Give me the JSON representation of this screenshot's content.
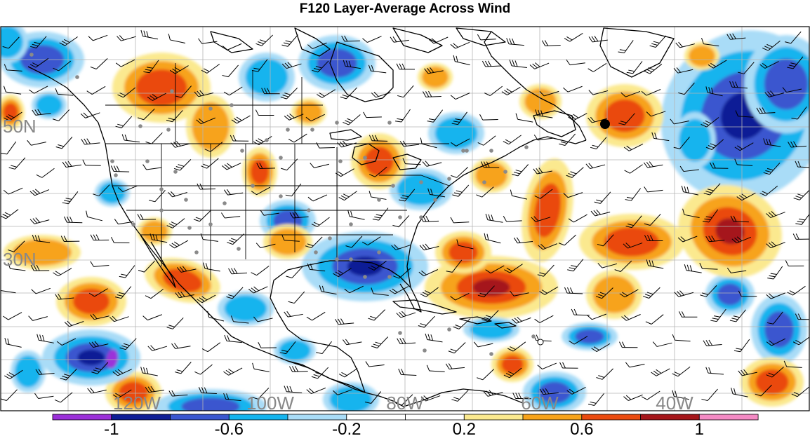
{
  "title": "F120 Layer-Average Across Wind",
  "map": {
    "lat_labels": [
      "50N",
      "30N"
    ],
    "lon_labels": [
      "120W",
      "100W",
      "80W",
      "60W",
      "40W"
    ],
    "label_color": "#888888",
    "grid_color": "#b5b5b5",
    "coast_color": "#000000",
    "marker_color": "#000000"
  },
  "colorbar": {
    "tick_labels": [
      "-1",
      "-0.6",
      "-0.2",
      "0.2",
      "0.6",
      "1"
    ],
    "colors": [
      "#9b30d9",
      "#0f1e96",
      "#3a57cf",
      "#14b4ee",
      "#a9dcf7",
      "#ffffff",
      "#ffffff",
      "#fbe98f",
      "#f7a31a",
      "#ea4a0e",
      "#a5161a",
      "#f48ac4"
    ]
  }
}
